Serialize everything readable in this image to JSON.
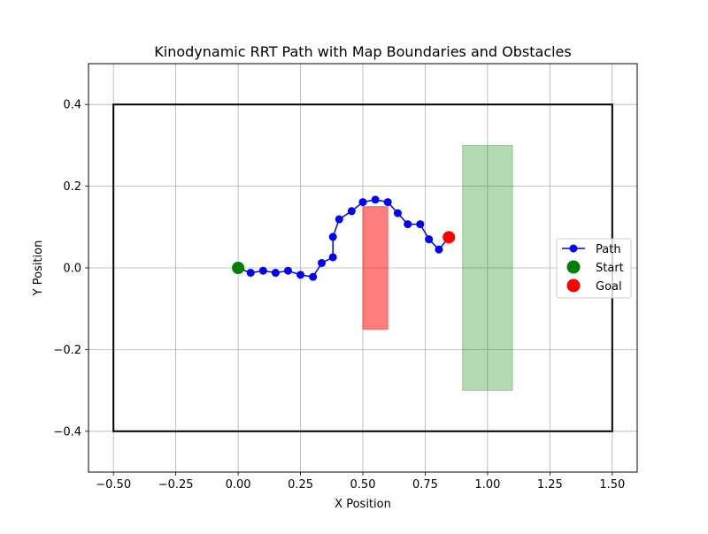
{
  "chart_data": {
    "type": "line",
    "title": "Kinodynamic RRT Path with Map Boundaries and Obstacles",
    "xlabel": "X Position",
    "ylabel": "Y Position",
    "xlim": [
      -0.6,
      1.6
    ],
    "ylim": [
      -0.5,
      0.5
    ],
    "xticks": [
      -0.5,
      -0.25,
      0.0,
      0.25,
      0.5,
      0.75,
      1.0,
      1.25,
      1.5
    ],
    "xtick_labels": [
      "−0.50",
      "−0.25",
      "0.00",
      "0.25",
      "0.50",
      "0.75",
      "1.00",
      "1.25",
      "1.50"
    ],
    "yticks": [
      -0.4,
      -0.2,
      0.0,
      0.2,
      0.4
    ],
    "ytick_labels": [
      "−0.4",
      "−0.2",
      "0.0",
      "0.2",
      "0.4"
    ],
    "grid": true,
    "legend_position": "center-right",
    "boundary": {
      "x": [
        -0.5,
        1.5
      ],
      "y": [
        -0.4,
        0.4
      ],
      "color": "#000000"
    },
    "obstacles": [
      {
        "x": [
          0.5,
          0.6
        ],
        "y": [
          -0.15,
          0.15
        ],
        "color": "#ff0000",
        "opacity": 0.5
      },
      {
        "x": [
          0.9,
          1.1
        ],
        "y": [
          -0.3,
          0.3
        ],
        "color": "#008000",
        "opacity": 0.3
      }
    ],
    "series": [
      {
        "name": "Path",
        "color": "#0000ff",
        "x": [
          0.0,
          0.05,
          0.1,
          0.15,
          0.2,
          0.25,
          0.3,
          0.335,
          0.38,
          0.38,
          0.405,
          0.455,
          0.5,
          0.55,
          0.6,
          0.64,
          0.68,
          0.73,
          0.765,
          0.805,
          0.845
        ],
        "y": [
          0.0,
          -0.012,
          -0.007,
          -0.012,
          -0.007,
          -0.017,
          -0.022,
          0.012,
          0.026,
          0.076,
          0.119,
          0.139,
          0.161,
          0.167,
          0.161,
          0.134,
          0.107,
          0.107,
          0.07,
          0.045,
          0.075
        ]
      },
      {
        "name": "Start",
        "color": "#008000",
        "x": [
          0.0
        ],
        "y": [
          0.0
        ]
      },
      {
        "name": "Goal",
        "color": "#ff0000",
        "x": [
          0.845
        ],
        "y": [
          0.075
        ]
      }
    ]
  }
}
